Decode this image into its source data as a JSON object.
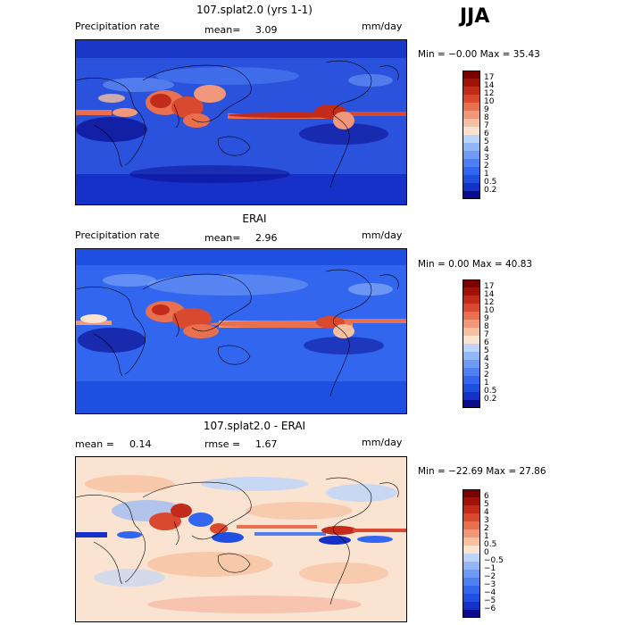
{
  "season": "JJA",
  "panels": [
    {
      "title": "107.splat2.0 (yrs 1-1)",
      "left_label": "Precipitation rate",
      "mid_label": "mean=",
      "mid_value": "3.09",
      "right_label": "mm/day",
      "minmax": "Min =  −0.00 Max =  35.43",
      "colorbar_ticks": [
        "17",
        "14",
        "12",
        "10",
        "9",
        "8",
        "7",
        "6",
        "5",
        "4",
        "3",
        "2",
        "1",
        "0.5",
        "0.2"
      ]
    },
    {
      "title": "ERAI",
      "left_label": "Precipitation rate",
      "mid_label": "mean=",
      "mid_value": "2.96",
      "right_label": "mm/day",
      "minmax": "Min =   0.00 Max =  40.83",
      "colorbar_ticks": [
        "17",
        "14",
        "12",
        "10",
        "9",
        "8",
        "7",
        "6",
        "5",
        "4",
        "3",
        "2",
        "1",
        "0.5",
        "0.2"
      ]
    },
    {
      "title": "107.splat2.0 - ERAI",
      "left_label": "mean =",
      "left_value": "0.14",
      "mid_label": "rmse =",
      "mid_value": "1.67",
      "right_label": "mm/day",
      "minmax": "Min = −22.69 Max =  27.86",
      "colorbar_ticks": [
        "6",
        "5",
        "4",
        "3",
        "2",
        "1",
        "0.5",
        "0",
        "−0.5",
        "−1",
        "−2",
        "−3",
        "−4",
        "−5",
        "−6"
      ]
    }
  ],
  "chart_data": [
    {
      "type": "heatmap",
      "title": "107.splat2.0 (yrs 1-1)",
      "variable": "Precipitation rate",
      "units": "mm/day",
      "mean": 3.09,
      "min": -0.0,
      "max": 35.43,
      "levels": [
        0.2,
        0.5,
        1,
        2,
        3,
        4,
        5,
        6,
        7,
        8,
        9,
        10,
        12,
        14,
        17
      ],
      "colors": [
        "#0a0a8c",
        "#1531c8",
        "#1f4fe0",
        "#3366ee",
        "#4f80f2",
        "#6e9af5",
        "#93b6f7",
        "#bcd3fa",
        "#fbe3d2",
        "#f7c0a0",
        "#f2987a",
        "#e8704f",
        "#d9492f",
        "#c22a1a",
        "#9e1208",
        "#7a0000"
      ]
    },
    {
      "type": "heatmap",
      "title": "ERAI",
      "variable": "Precipitation rate",
      "units": "mm/day",
      "mean": 2.96,
      "min": 0.0,
      "max": 40.83,
      "levels": [
        0.2,
        0.5,
        1,
        2,
        3,
        4,
        5,
        6,
        7,
        8,
        9,
        10,
        12,
        14,
        17
      ],
      "colors": [
        "#0a0a8c",
        "#1531c8",
        "#1f4fe0",
        "#3366ee",
        "#4f80f2",
        "#6e9af5",
        "#93b6f7",
        "#bcd3fa",
        "#fbe3d2",
        "#f7c0a0",
        "#f2987a",
        "#e8704f",
        "#d9492f",
        "#c22a1a",
        "#9e1208",
        "#7a0000"
      ]
    },
    {
      "type": "heatmap",
      "title": "107.splat2.0 - ERAI",
      "units": "mm/day",
      "mean": 0.14,
      "rmse": 1.67,
      "min": -22.69,
      "max": 27.86,
      "levels": [
        -6,
        -5,
        -4,
        -3,
        -2,
        -1,
        -0.5,
        0,
        0.5,
        1,
        2,
        3,
        4,
        5,
        6
      ],
      "colors": [
        "#0a0a8c",
        "#1531c8",
        "#1f4fe0",
        "#3366ee",
        "#4f80f2",
        "#6e9af5",
        "#93b6f7",
        "#bcd3fa",
        "#fbe3d2",
        "#f7c0a0",
        "#f2987a",
        "#e8704f",
        "#d9492f",
        "#c22a1a",
        "#9e1208",
        "#7a0000"
      ]
    }
  ]
}
